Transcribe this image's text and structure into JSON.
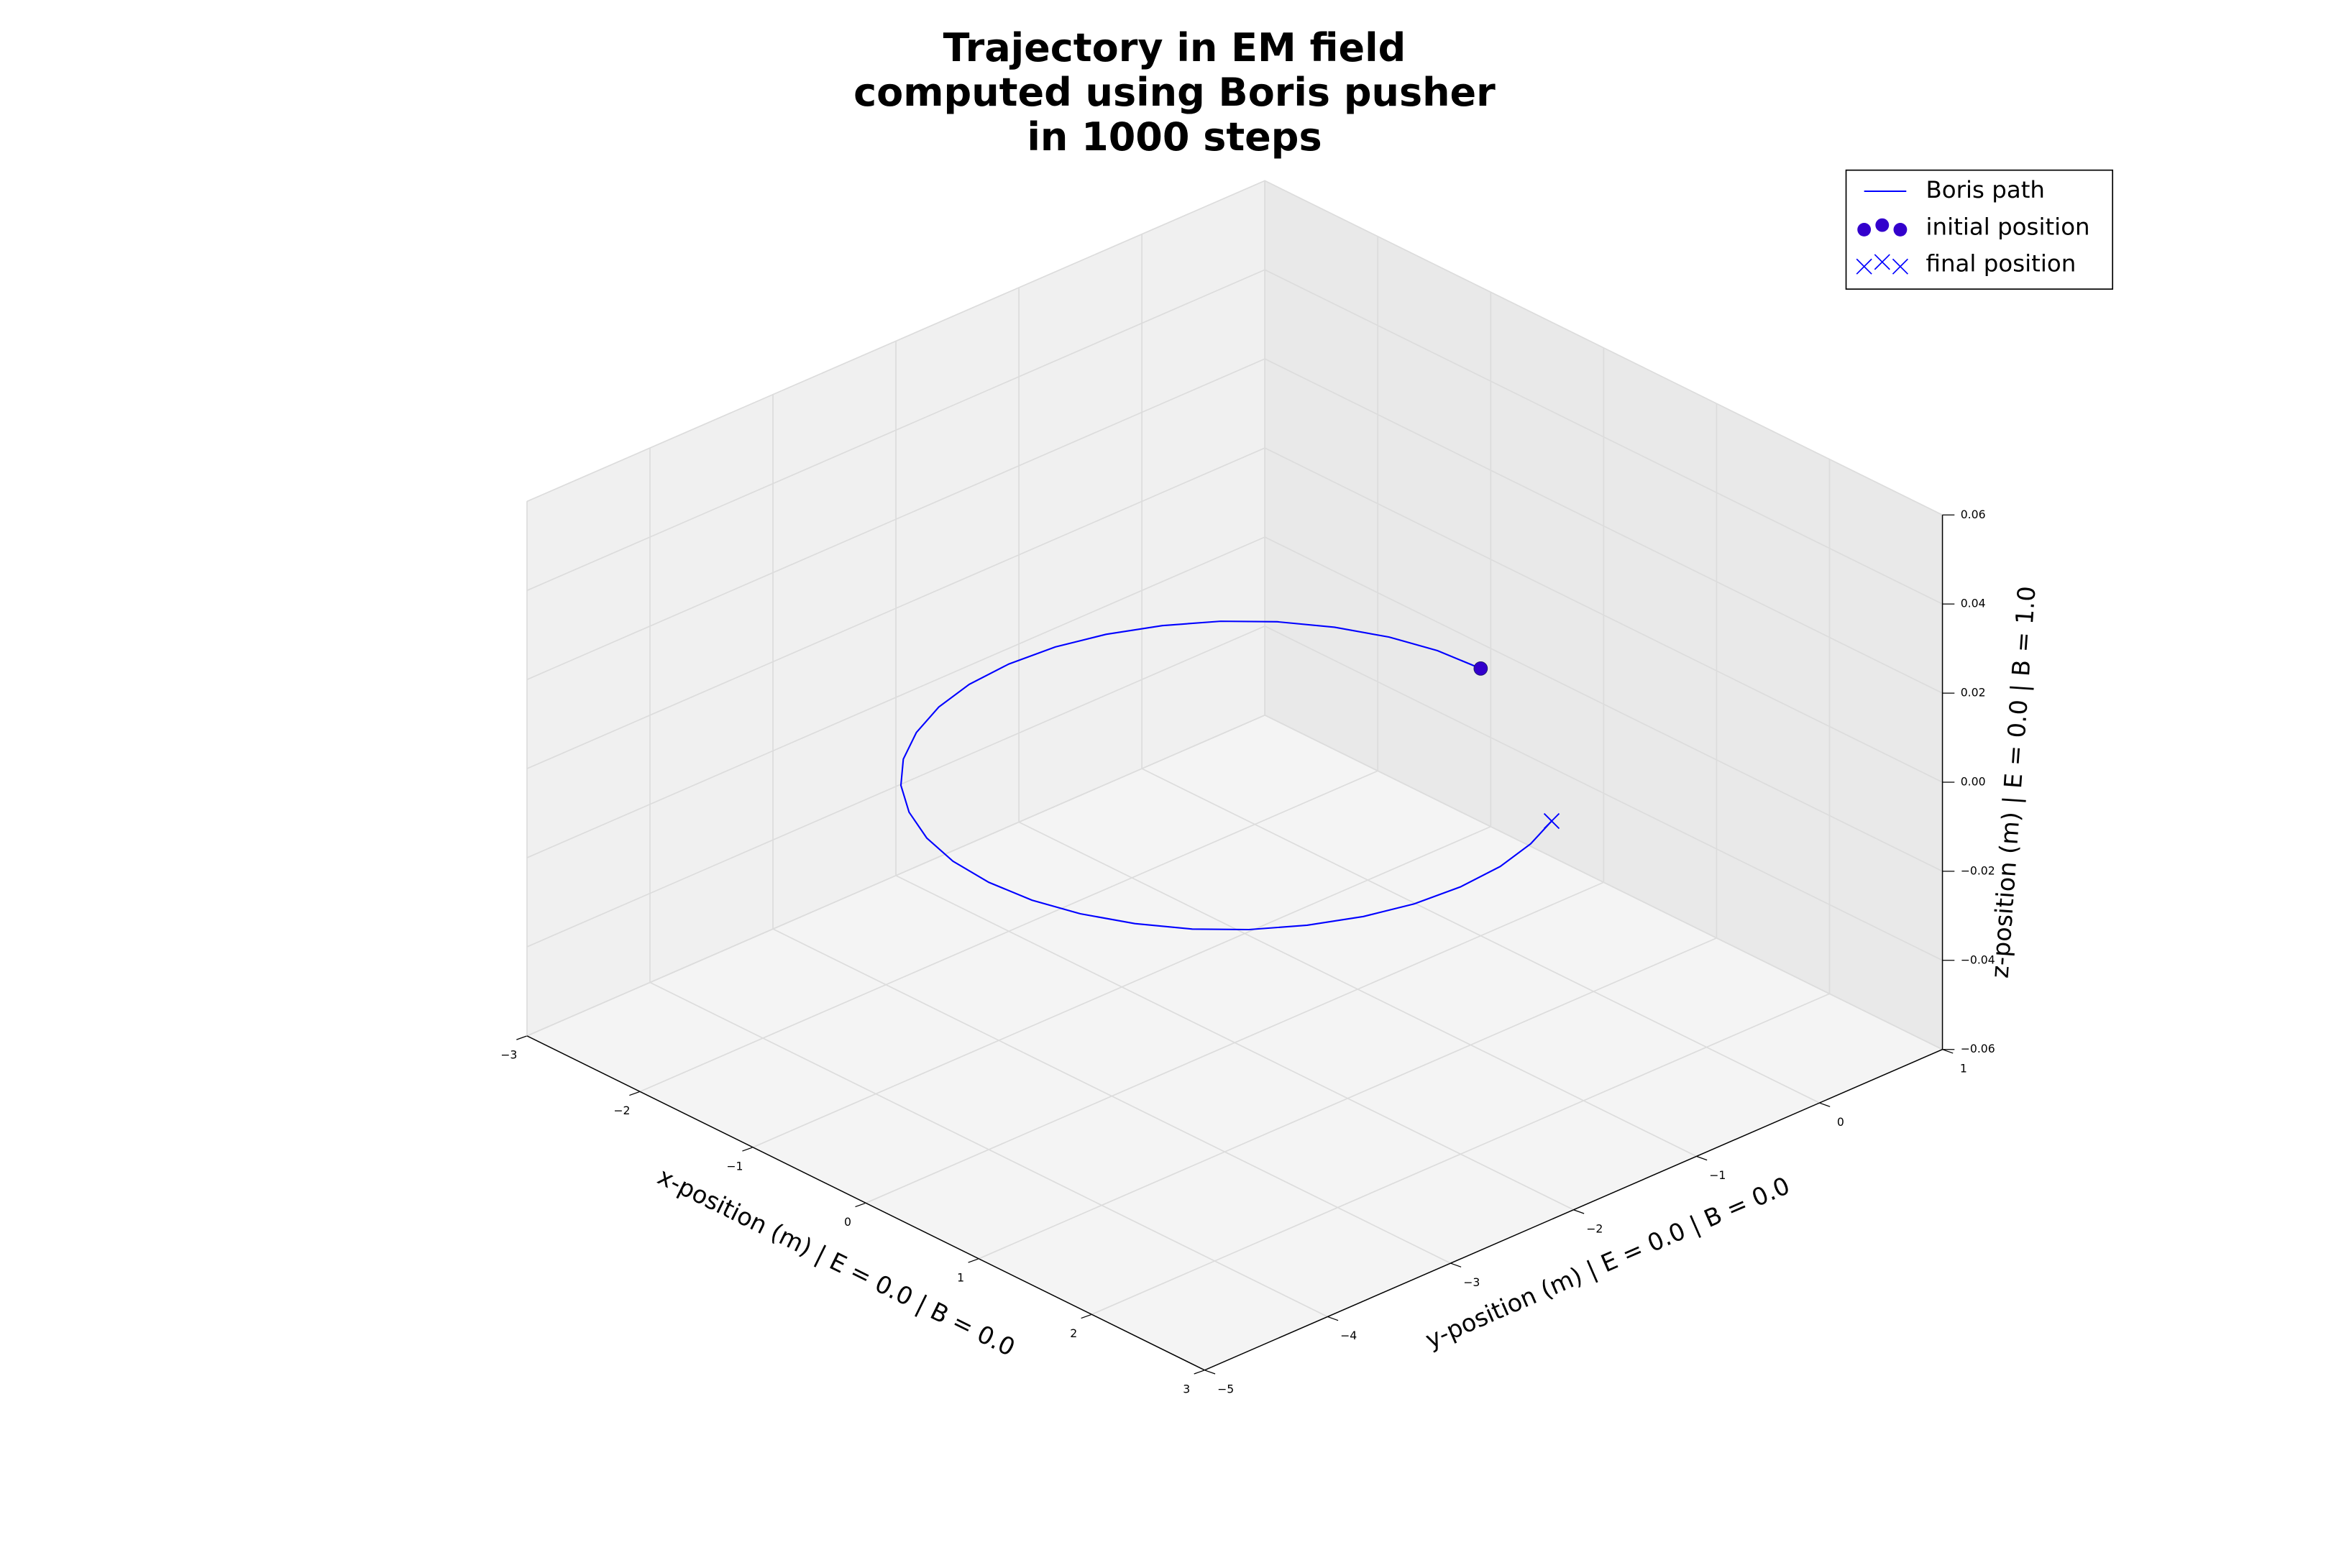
{
  "chart_data": {
    "type": "line3d",
    "title": "Trajectory in EM field\ncomputed using Boris pusher\nin 1000 steps",
    "xlabel": "x-position (m) | E = 0.0 | B = 0.0",
    "ylabel": "y-position (m) | E = 0.0 | B = 0.0",
    "zlabel": "z-position (m) | E = 0.0 | B = 1.0",
    "xlim": [
      -3,
      3
    ],
    "ylim": [
      -5,
      1
    ],
    "zlim": [
      -0.06,
      0.06
    ],
    "xticks": [
      {
        "value": -3,
        "label": "−3"
      },
      {
        "value": -2,
        "label": "−2"
      },
      {
        "value": -1,
        "label": "−1"
      },
      0,
      1,
      2,
      3
    ],
    "yticks": [
      {
        "value": -5,
        "label": "−5"
      },
      {
        "value": -4,
        "label": "−4"
      },
      {
        "value": -3,
        "label": "−3"
      },
      {
        "value": -2,
        "label": "−2"
      },
      {
        "value": -1,
        "label": "−1"
      },
      0,
      1
    ],
    "zticks": [
      {
        "value": -0.06,
        "label": "−0.06"
      },
      {
        "value": -0.04,
        "label": "−0.04"
      },
      {
        "value": -0.02,
        "label": "−0.02"
      },
      {
        "value": 0,
        "label": "0.00"
      },
      0.02,
      0.04,
      0.06
    ],
    "grid": true,
    "legend": "upper right",
    "series": [
      {
        "name": "Boris path",
        "type": "line",
        "color": "#0000ff",
        "x": [
          0,
          -0.35,
          -0.68,
          -1.0,
          -1.29,
          -1.53,
          -1.73,
          -1.88,
          -1.97,
          -2,
          -1.97,
          -1.88,
          -1.73,
          -1.53,
          -1.29,
          -1.0,
          -0.68,
          -0.35,
          0,
          0.35,
          0.68,
          1.0,
          1.29,
          1.53,
          1.73,
          1.88,
          1.97,
          2,
          1.97,
          1.88,
          1.75
        ],
        "y": [
          0,
          -0.03,
          -0.12,
          -0.27,
          -0.47,
          -0.71,
          -1.0,
          -1.32,
          -1.65,
          -2,
          -2.35,
          -2.68,
          -3.0,
          -3.29,
          -3.53,
          -3.73,
          -3.88,
          -3.97,
          -4,
          -3.97,
          -3.88,
          -3.73,
          -3.53,
          -3.29,
          -3.0,
          -2.68,
          -2.35,
          -2,
          -1.65,
          -1.32,
          -1.03
        ],
        "z": [
          0,
          0,
          0,
          0,
          0,
          0,
          0,
          0,
          0,
          0,
          0,
          0,
          0,
          0,
          0,
          0,
          0,
          0,
          0,
          0,
          0,
          0,
          0,
          0,
          0,
          0,
          0,
          0,
          0,
          0,
          0
        ]
      },
      {
        "name": "initial position",
        "type": "scatter",
        "marker": "o",
        "color": "#3300cc",
        "x": [
          0
        ],
        "y": [
          0
        ],
        "z": [
          0
        ]
      },
      {
        "name": "final position",
        "type": "scatter",
        "marker": "x",
        "color": "#0000ff",
        "x": [
          1.75
        ],
        "y": [
          -1.03
        ],
        "z": [
          0
        ]
      }
    ]
  }
}
